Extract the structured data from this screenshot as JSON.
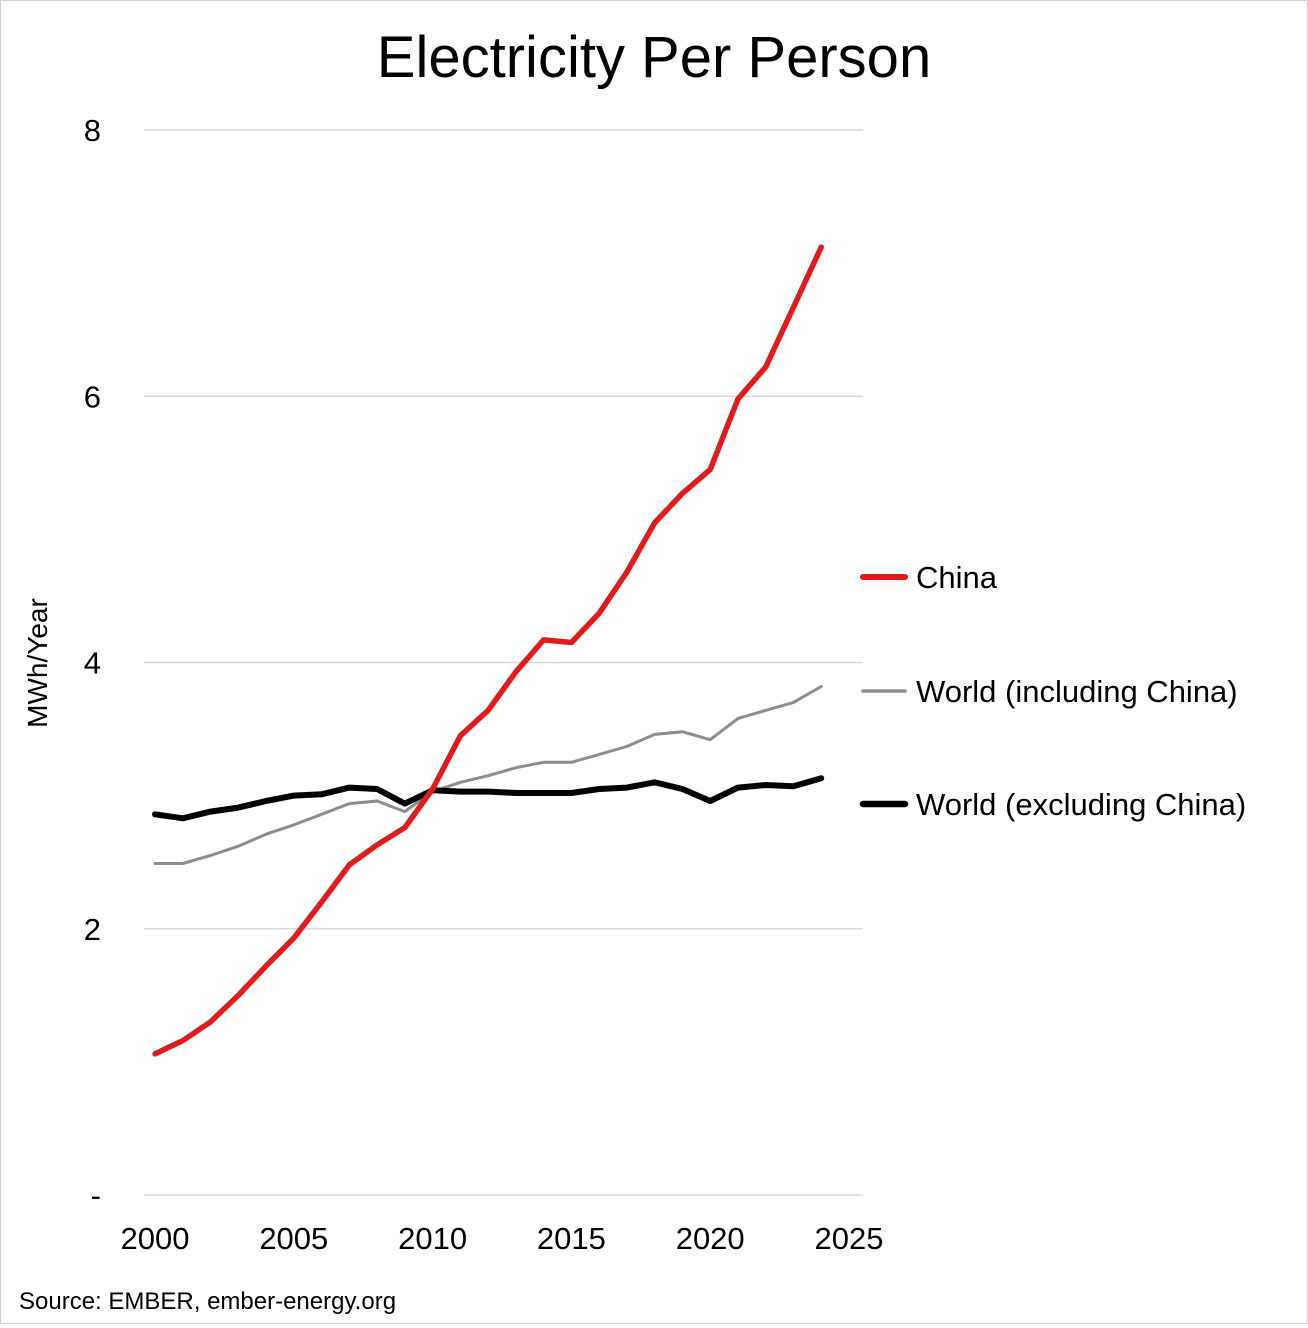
{
  "chart_data": {
    "type": "line",
    "title": "Electricity Per Person",
    "ylabel": "MWh/Year",
    "xlabel": "",
    "source": "Source: EMBER, ember-energy.org",
    "xlim": [
      2000,
      2025
    ],
    "ylim": [
      0,
      8
    ],
    "x_ticks": [
      2000,
      2005,
      2010,
      2015,
      2020,
      2025
    ],
    "x_tick_labels": [
      "2000",
      "2005",
      "2010",
      "2015",
      "2020",
      "2025"
    ],
    "y_ticks": [
      0,
      2,
      4,
      6,
      8
    ],
    "y_tick_labels": [
      "-",
      "2",
      "4",
      "6",
      "8"
    ],
    "grid": "horizontal",
    "legend_position": "right",
    "x": [
      2000,
      2001,
      2002,
      2003,
      2004,
      2005,
      2006,
      2007,
      2008,
      2009,
      2010,
      2011,
      2012,
      2013,
      2014,
      2015,
      2016,
      2017,
      2018,
      2019,
      2020,
      2021,
      2022,
      2023,
      2024
    ],
    "series": [
      {
        "name": "China",
        "color": "#e31a1c",
        "values": [
          1.06,
          1.16,
          1.3,
          1.5,
          1.72,
          1.93,
          2.2,
          2.48,
          2.63,
          2.76,
          3.05,
          3.45,
          3.64,
          3.93,
          4.17,
          4.15,
          4.37,
          4.68,
          5.05,
          5.27,
          5.45,
          5.98,
          6.22,
          6.67,
          7.12
        ]
      },
      {
        "name": "World (including China)",
        "color": "#8c8c8c",
        "values": [
          2.49,
          2.49,
          2.55,
          2.62,
          2.71,
          2.78,
          2.86,
          2.94,
          2.96,
          2.88,
          3.03,
          3.1,
          3.15,
          3.21,
          3.25,
          3.25,
          3.31,
          3.37,
          3.46,
          3.48,
          3.42,
          3.58,
          3.64,
          3.7,
          3.82
        ]
      },
      {
        "name": "World (excluding China)",
        "color": "#000000",
        "values": [
          2.86,
          2.83,
          2.88,
          2.91,
          2.96,
          3.0,
          3.01,
          3.06,
          3.05,
          2.94,
          3.04,
          3.03,
          3.03,
          3.02,
          3.02,
          3.02,
          3.05,
          3.06,
          3.1,
          3.05,
          2.96,
          3.06,
          3.08,
          3.07,
          3.13
        ]
      }
    ]
  }
}
